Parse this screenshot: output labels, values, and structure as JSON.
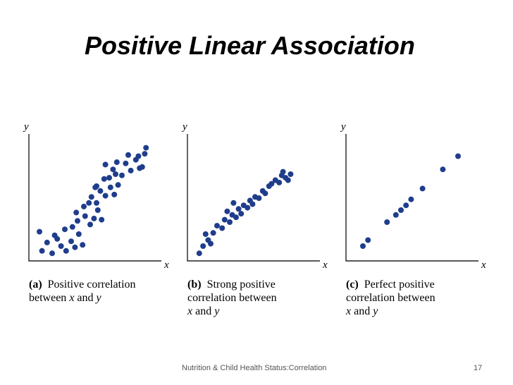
{
  "title": "Positive Linear Association",
  "footer": {
    "text": "Nutrition & Child Health Status:Correlation",
    "page": "17"
  },
  "colors": {
    "point": "#1f3d8c",
    "axis": "#222222"
  },
  "axis_letters": {
    "x": "x",
    "y": "y"
  },
  "chart_data": [
    {
      "type": "scatter",
      "panel": "a",
      "caption": {
        "tag": "(a)",
        "lines": [
          [
            {
              "t": "Positive correlation"
            }
          ],
          [
            {
              "t": "between "
            },
            {
              "t": "x",
              "v": true
            },
            {
              "t": " and "
            },
            {
              "t": "y",
              "v": true
            }
          ]
        ]
      },
      "xlim": [
        0,
        10
      ],
      "ylim": [
        0,
        10
      ],
      "points": [
        [
          0.7,
          0.6
        ],
        [
          1.1,
          1.3
        ],
        [
          1.5,
          0.4
        ],
        [
          1.9,
          1.6
        ],
        [
          2.2,
          1.0
        ],
        [
          2.6,
          0.6
        ],
        [
          3.0,
          1.4
        ],
        [
          3.3,
          0.9
        ],
        [
          3.6,
          2.0
        ],
        [
          3.9,
          1.1
        ],
        [
          0.5,
          2.2
        ],
        [
          1.7,
          1.9
        ],
        [
          2.5,
          2.4
        ],
        [
          3.1,
          2.6
        ],
        [
          3.5,
          3.1
        ],
        [
          4.1,
          3.5
        ],
        [
          4.5,
          2.8
        ],
        [
          4.8,
          3.3
        ],
        [
          5.1,
          4.0
        ],
        [
          5.4,
          3.2
        ],
        [
          3.4,
          3.8
        ],
        [
          4.0,
          4.3
        ],
        [
          4.4,
          4.6
        ],
        [
          4.6,
          5.1
        ],
        [
          5.0,
          4.6
        ],
        [
          5.3,
          5.6
        ],
        [
          5.7,
          5.2
        ],
        [
          6.1,
          5.9
        ],
        [
          6.4,
          5.3
        ],
        [
          6.7,
          6.1
        ],
        [
          5.0,
          6.0
        ],
        [
          5.6,
          6.6
        ],
        [
          6.0,
          6.7
        ],
        [
          6.3,
          7.4
        ],
        [
          7.0,
          6.9
        ],
        [
          7.3,
          7.9
        ],
        [
          7.7,
          7.3
        ],
        [
          8.1,
          8.2
        ],
        [
          8.4,
          7.5
        ],
        [
          8.8,
          8.7
        ],
        [
          5.7,
          7.8
        ],
        [
          6.6,
          8.0
        ],
        [
          7.5,
          8.6
        ],
        [
          8.3,
          8.5
        ],
        [
          8.9,
          9.2
        ],
        [
          8.6,
          7.6
        ],
        [
          4.9,
          5.9
        ],
        [
          6.5,
          7.0
        ]
      ]
    },
    {
      "type": "scatter",
      "panel": "b",
      "caption": {
        "tag": "(b)",
        "lines": [
          [
            {
              "t": "Strong positive"
            }
          ],
          [
            {
              "t": "correlation between"
            }
          ],
          [
            {
              "t": "x",
              "v": true
            },
            {
              "t": " and "
            },
            {
              "t": "y",
              "v": true
            }
          ]
        ]
      },
      "xlim": [
        0,
        10
      ],
      "ylim": [
        0,
        10
      ],
      "points": [
        [
          0.6,
          0.4
        ],
        [
          0.9,
          1.0
        ],
        [
          1.3,
          1.5
        ],
        [
          1.1,
          2.0
        ],
        [
          1.7,
          2.1
        ],
        [
          2.0,
          2.7
        ],
        [
          2.4,
          2.5
        ],
        [
          2.6,
          3.2
        ],
        [
          3.0,
          3.0
        ],
        [
          3.2,
          3.6
        ],
        [
          3.5,
          3.4
        ],
        [
          3.7,
          4.1
        ],
        [
          3.9,
          3.7
        ],
        [
          4.1,
          4.4
        ],
        [
          4.4,
          4.2
        ],
        [
          4.6,
          4.8
        ],
        [
          4.8,
          4.5
        ],
        [
          5.0,
          5.1
        ],
        [
          5.3,
          5.0
        ],
        [
          5.6,
          5.6
        ],
        [
          5.8,
          5.4
        ],
        [
          6.1,
          6.0
        ],
        [
          6.3,
          6.2
        ],
        [
          6.6,
          6.5
        ],
        [
          6.9,
          6.3
        ],
        [
          7.1,
          6.9
        ],
        [
          7.4,
          6.7
        ],
        [
          7.8,
          7.0
        ],
        [
          7.2,
          7.2
        ],
        [
          7.6,
          6.5
        ],
        [
          3.3,
          4.6
        ],
        [
          2.8,
          3.9
        ],
        [
          1.5,
          1.2
        ]
      ]
    },
    {
      "type": "scatter",
      "panel": "c",
      "caption": {
        "tag": "(c)",
        "lines": [
          [
            {
              "t": "Perfect positive"
            }
          ],
          [
            {
              "t": "correlation between"
            }
          ],
          [
            {
              "t": "x",
              "v": true
            },
            {
              "t": " and "
            },
            {
              "t": "y",
              "v": true
            }
          ]
        ]
      },
      "xlim": [
        0,
        10
      ],
      "ylim": [
        0,
        10
      ],
      "points": [
        [
          1.0,
          1.0
        ],
        [
          1.4,
          1.5
        ],
        [
          2.9,
          3.0
        ],
        [
          3.6,
          3.6
        ],
        [
          4.0,
          4.0
        ],
        [
          4.4,
          4.4
        ],
        [
          4.8,
          4.9
        ],
        [
          5.7,
          5.8
        ],
        [
          7.3,
          7.4
        ],
        [
          8.5,
          8.5
        ]
      ]
    }
  ]
}
